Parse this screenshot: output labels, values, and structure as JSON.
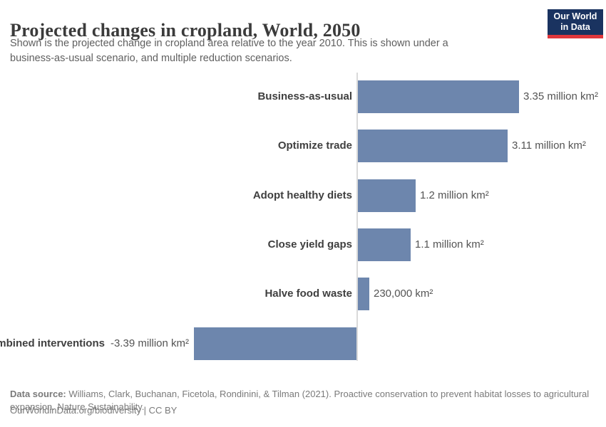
{
  "header": {
    "title": "Projected changes in cropland, World, 2050",
    "subtitle_lines": [
      "Shown is the projected change in cropland area relative to the year 2010. This is shown under a",
      "business-as-usual scenario, and multiple reduction scenarios."
    ],
    "logo": {
      "line1": "Our World",
      "line2": "in Data",
      "bg_color": "#1a3360",
      "accent_color": "#e0373c"
    }
  },
  "chart_data": {
    "type": "bar",
    "orientation": "horizontal",
    "title": "Projected changes in cropland, World, 2050",
    "unit": "million km²",
    "categories": [
      "Business-as-usual",
      "Optimize trade",
      "Adopt healthy diets",
      "Close yield gaps",
      "Halve food waste",
      "Combined interventions"
    ],
    "values": [
      3.35,
      3.11,
      1.2,
      1.1,
      0.23,
      -3.39
    ],
    "value_labels": [
      "3.35 million km²",
      "3.11 million km²",
      "1.2 million km²",
      "1.1 million km²",
      "230,000 km²",
      "-3.39 million km²"
    ],
    "bar_color": "#6d86ad",
    "zero_axis_color": "#dadada",
    "xlim": [
      -3.39,
      3.35
    ],
    "grid": false,
    "legend": false
  },
  "footer": {
    "source_label": "Data source:",
    "source_line1": "Williams, Clark, Buchanan, Ficetola, Rondinini, & Tilman (2021). Proactive conservation to prevent habitat losses to agricultural",
    "source_line2": "expansion. Nature Sustainability.",
    "license_line": "OurWorldinData.org/biodiversity | CC BY"
  }
}
